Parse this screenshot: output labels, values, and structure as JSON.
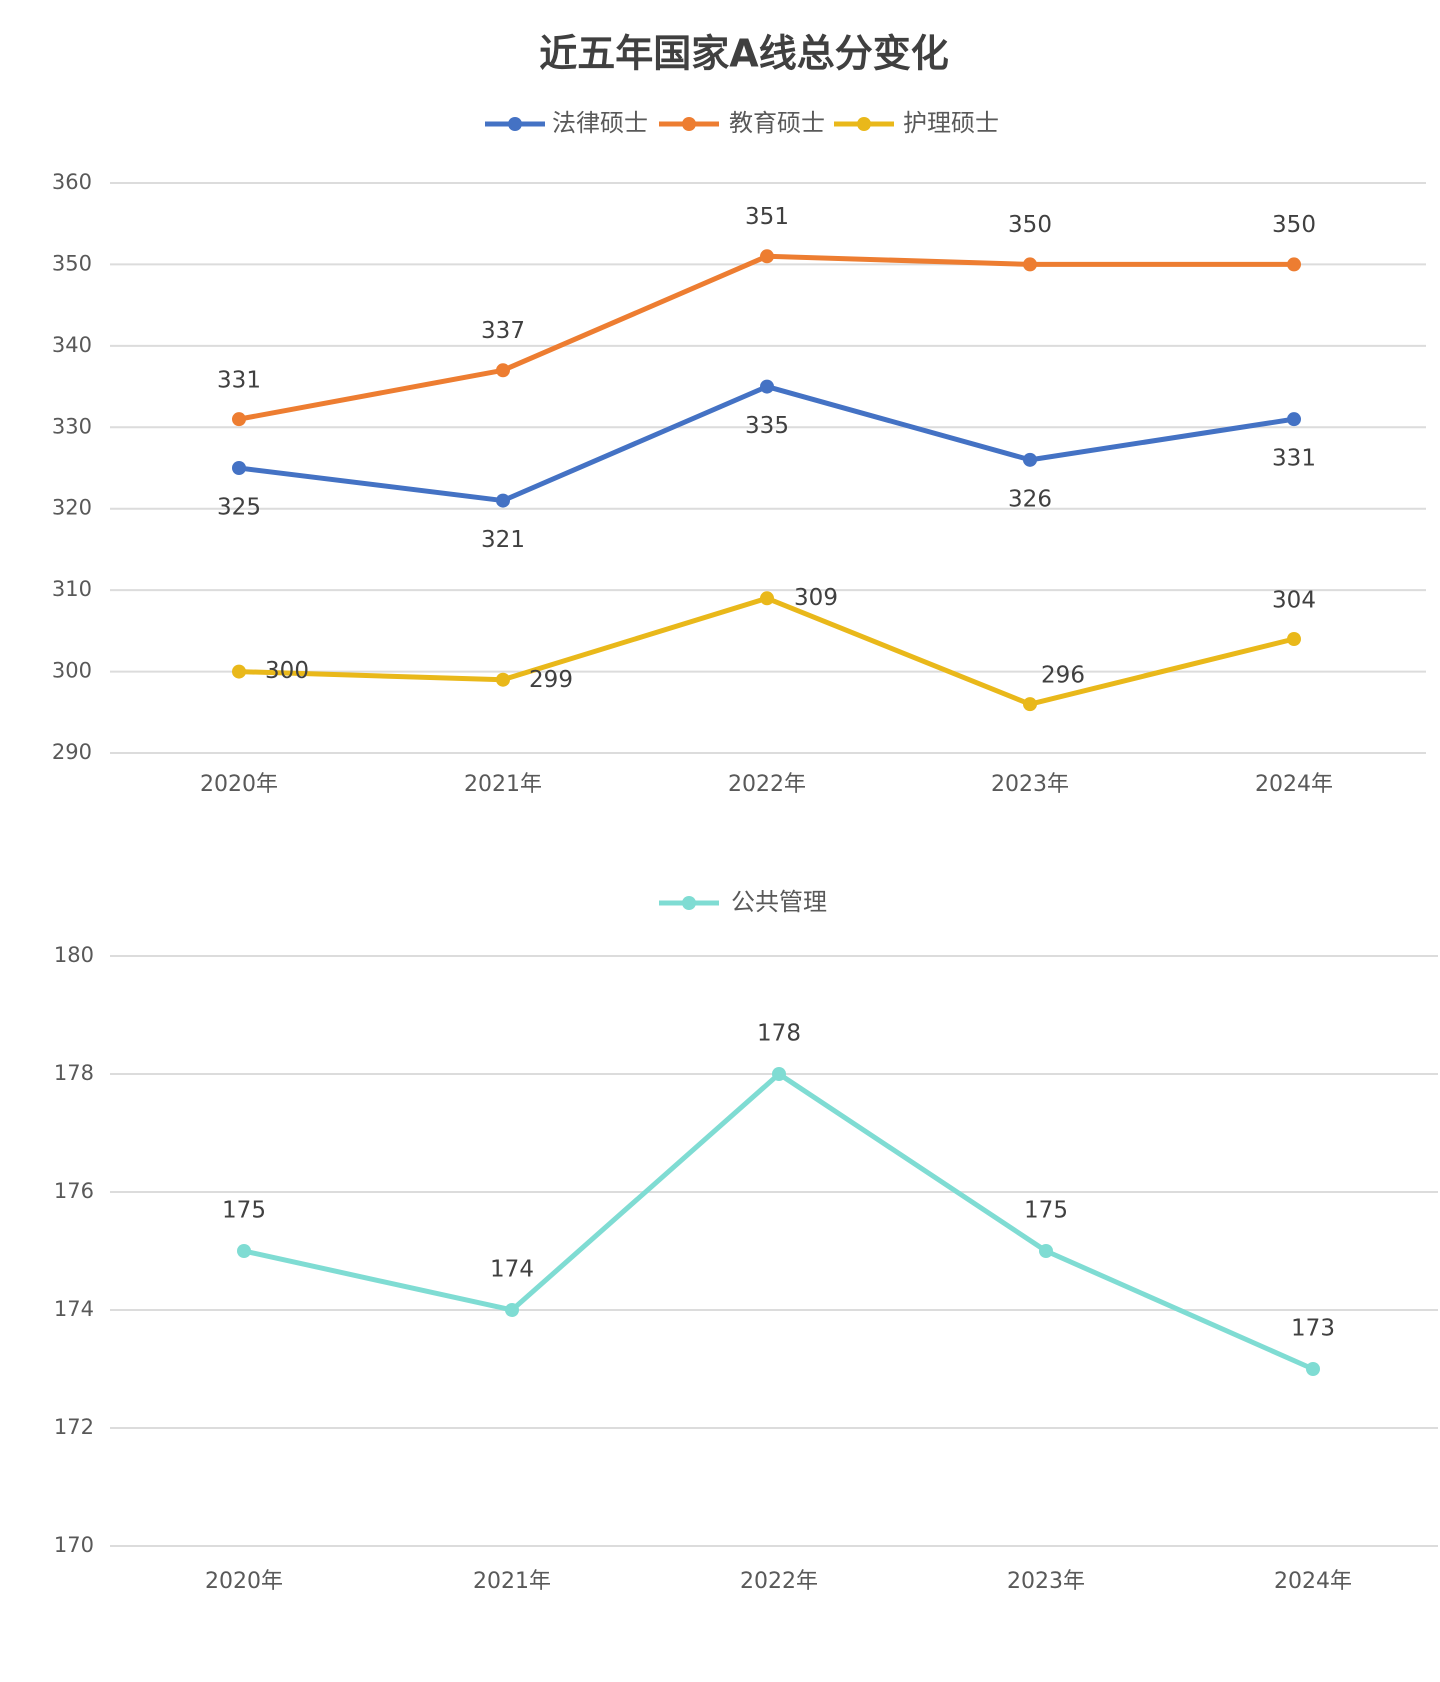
{
  "chart_data": [
    {
      "type": "line",
      "title": "近五年国家A线总分变化",
      "categories": [
        "2020年",
        "2021年",
        "2022年",
        "2023年",
        "2024年"
      ],
      "series": [
        {
          "name": "法律硕士",
          "color": "#4472c4",
          "values": [
            325,
            321,
            335,
            326,
            331
          ]
        },
        {
          "name": "教育硕士",
          "color": "#ed7d31",
          "values": [
            331,
            337,
            351,
            350,
            350
          ]
        },
        {
          "name": "护理硕士",
          "color": "#e9b81a",
          "values": [
            300,
            299,
            309,
            296,
            304
          ]
        }
      ],
      "ylim": [
        290,
        360
      ],
      "yticks": [
        290,
        300,
        310,
        320,
        330,
        340,
        350,
        360
      ],
      "grid": true
    },
    {
      "type": "line",
      "categories": [
        "2020年",
        "2021年",
        "2022年",
        "2023年",
        "2024年"
      ],
      "series": [
        {
          "name": "公共管理",
          "color": "#7fdcd3",
          "values": [
            175,
            174,
            178,
            175,
            173
          ]
        }
      ],
      "ylim": [
        170,
        180
      ],
      "yticks": [
        170,
        172,
        174,
        176,
        178,
        180
      ],
      "grid": true
    }
  ]
}
